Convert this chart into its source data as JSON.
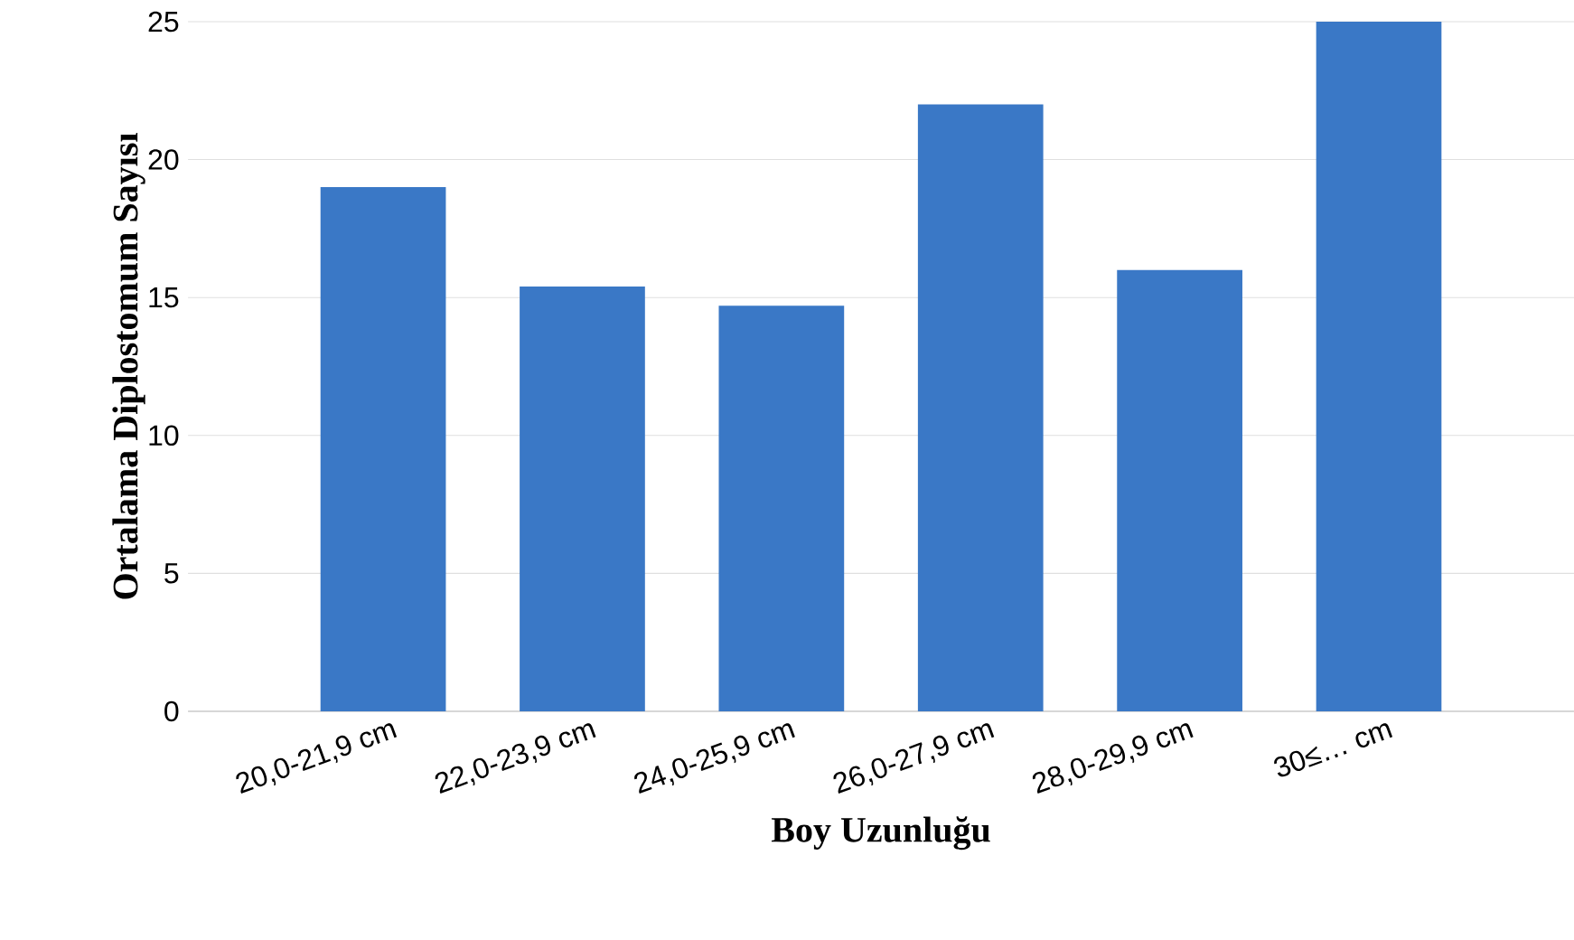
{
  "chart_data": {
    "type": "bar",
    "xlabel": "Boy Uzunluğu",
    "ylabel": "Ortalama Diplostomum Sayısı",
    "categories": [
      "20,0-21,9 cm",
      "22,0-23,9 cm",
      "24,0-25,9 cm",
      "26,0-27,9 cm",
      "28,0-29,9 cm",
      "30≤… cm"
    ],
    "values": [
      19,
      15.4,
      14.7,
      22,
      16,
      25
    ],
    "color": "#3a78c6",
    "ylim": [
      0,
      25
    ],
    "yticks": [
      0,
      5,
      10,
      15,
      20,
      25
    ],
    "grid": "y"
  }
}
